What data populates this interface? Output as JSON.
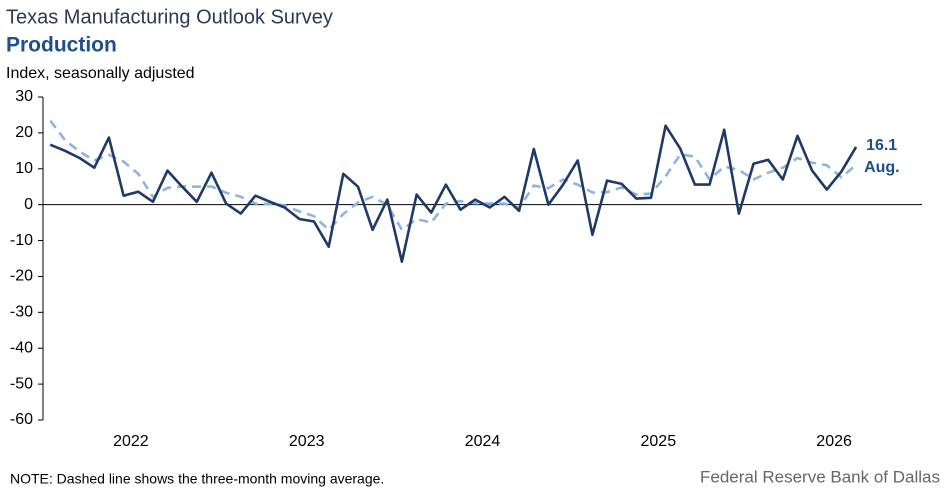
{
  "chart_data": {
    "type": "line",
    "title": "Texas Manufacturing Outlook Survey",
    "subtitle": "Production",
    "y_axis_label": "Index, seasonally adjusted",
    "categories": [
      null,
      null,
      null,
      null,
      null,
      null,
      "2022",
      null,
      null,
      null,
      null,
      null,
      null,
      null,
      null,
      null,
      null,
      null,
      "2023",
      null,
      null,
      null,
      null,
      null,
      null,
      null,
      null,
      null,
      null,
      null,
      "2024",
      null,
      null,
      null,
      null,
      null,
      null,
      null,
      null,
      null,
      null,
      null,
      "2025",
      null,
      null,
      null,
      null,
      null,
      null,
      null,
      null,
      null,
      null,
      null,
      "2026",
      null
    ],
    "series": [
      {
        "color": "#1f3a68",
        "style": "solid",
        "values": [
          16.7,
          15,
          13,
          10.3,
          18.7,
          2.5,
          3.6,
          0.8,
          9.5,
          5,
          0.8,
          8.9,
          0.3,
          -2.5,
          2.5,
          0.8,
          -0.8,
          -4,
          -4.7,
          -11.7,
          8.6,
          5,
          -7,
          1.4,
          -15.9,
          2.8,
          -2.2,
          5.6,
          -1.4,
          1.4,
          -0.8,
          2.2,
          -1.7,
          15.5,
          0,
          5.6,
          12.3,
          -8.4,
          6.7,
          5.8,
          1.7,
          1.9,
          22,
          15.6,
          5.6,
          5.6,
          20.9,
          -2.5,
          11.4,
          12.5,
          7,
          19.2,
          9.5,
          4.2,
          9.2,
          16.1
        ]
      },
      {
        "color": "#8fb3e0",
        "style": "dashed",
        "values": [
          23.4,
          18,
          14.8,
          12.3,
          13.9,
          12,
          8.6,
          2.2,
          4.7,
          5.1,
          5,
          5.1,
          3.3,
          2.2,
          0.3,
          0.2,
          -0.2,
          -1.9,
          -3.2,
          -7,
          -2.6,
          0.6,
          2.2,
          0,
          -7,
          -4,
          -5,
          0.3,
          1,
          0.4,
          0.3,
          0.3,
          -0.9,
          5.3,
          4.6,
          7,
          5.6,
          3.4,
          3.5,
          4.8,
          2.8,
          3.1,
          7.9,
          14,
          13.4,
          7,
          10.6,
          9.7,
          7,
          8.9,
          10.3,
          13,
          11.7,
          11,
          7.6,
          11.1
        ]
      }
    ],
    "ylim": [
      -60,
      30
    ],
    "yticks": [
      -60,
      -50,
      -40,
      -30,
      -20,
      -10,
      0,
      10,
      20,
      30
    ],
    "annotation": "Aug.",
    "note": "NOTE: Dashed line shows the three-month  moving average.",
    "source": "Federal Reserve Bank of Dallas"
  }
}
